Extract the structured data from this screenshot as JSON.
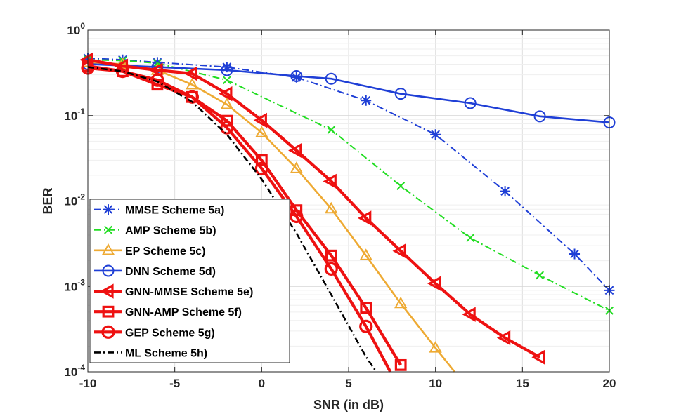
{
  "chart_data": {
    "type": "line",
    "title": "",
    "xlabel": "SNR (in dB)",
    "ylabel": "BER",
    "yscale": "log",
    "xlim": [
      -10,
      20
    ],
    "ylim": [
      0.0001,
      1
    ],
    "grid": true,
    "legend_position": "bottom-left",
    "x_ticks": [
      "-10",
      "-5",
      "0",
      "5",
      "10",
      "15",
      "20"
    ],
    "y_ticks": [
      {
        "base": "10",
        "exp": "0"
      },
      {
        "base": "10",
        "exp": "-1"
      },
      {
        "base": "10",
        "exp": "-2"
      },
      {
        "base": "10",
        "exp": "-3"
      },
      {
        "base": "10",
        "exp": "-4"
      }
    ],
    "series": [
      {
        "name": "MMSE Scheme 5a)",
        "color": "#1f3fd6",
        "dash": "dashdot",
        "width": "thin",
        "marker": "star",
        "x": [
          -10,
          -8,
          -6,
          -2,
          2,
          6,
          10,
          14,
          18,
          20
        ],
        "y": [
          0.47,
          0.45,
          0.42,
          0.37,
          0.28,
          0.15,
          0.06,
          0.013,
          0.0024,
          0.0009
        ]
      },
      {
        "name": "AMP Scheme 5b)",
        "color": "#22dd22",
        "dash": "dashdot",
        "width": "thin",
        "marker": "x",
        "x": [
          -10,
          -8,
          -6,
          -2,
          4,
          8,
          12,
          16,
          20
        ],
        "y": [
          0.45,
          0.44,
          0.41,
          0.26,
          0.068,
          0.015,
          0.0037,
          0.00135,
          0.00052
        ]
      },
      {
        "name": "EP Scheme 5c)",
        "color": "#eeaa33",
        "dash": "solid",
        "width": "medium",
        "marker": "triangle-up",
        "x": [
          -10,
          -8,
          -6,
          -4,
          -2,
          0,
          2,
          4,
          6,
          8,
          10,
          11.1
        ],
        "y": [
          0.42,
          0.4,
          0.34,
          0.23,
          0.135,
          0.063,
          0.024,
          0.0081,
          0.0023,
          0.00063,
          0.00019,
          0.0001
        ]
      },
      {
        "name": "DNN Scheme 5d)",
        "color": "#1f3fd6",
        "dash": "solid",
        "width": "medium",
        "marker": "circle",
        "x": [
          -10,
          -6,
          -2,
          2,
          4,
          8,
          12,
          16,
          20
        ],
        "y": [
          0.4,
          0.37,
          0.34,
          0.29,
          0.27,
          0.18,
          0.14,
          0.098,
          0.083
        ]
      },
      {
        "name": "GNN-MMSE Scheme 5e)",
        "color": "#ee1111",
        "dash": "solid",
        "width": "thick",
        "marker": "triangle-left",
        "x": [
          -10,
          -8,
          -6,
          -4,
          -2,
          0,
          2,
          4,
          6,
          8,
          10,
          12,
          14,
          16
        ],
        "y": [
          0.45,
          0.38,
          0.34,
          0.31,
          0.18,
          0.088,
          0.039,
          0.017,
          0.0063,
          0.0026,
          0.00108,
          0.00047,
          0.00025,
          0.000148
        ]
      },
      {
        "name": "GNN-AMP Scheme 5f)",
        "color": "#ee1111",
        "dash": "solid",
        "width": "thick",
        "marker": "square",
        "x": [
          -10,
          -8,
          -6,
          -4,
          -2,
          0,
          2,
          4,
          6,
          8
        ],
        "y": [
          0.38,
          0.33,
          0.23,
          0.165,
          0.087,
          0.03,
          0.0078,
          0.0023,
          0.00056,
          0.00012
        ]
      },
      {
        "name": "GEP Scheme 5g)",
        "color": "#ee1111",
        "dash": "solid",
        "width": "thick",
        "marker": "circle",
        "x": [
          -10,
          -8,
          -6,
          -4,
          -2,
          0,
          2,
          4,
          6,
          7.4
        ],
        "y": [
          0.36,
          0.33,
          0.26,
          0.165,
          0.072,
          0.024,
          0.0066,
          0.0016,
          0.00034,
          0.0001
        ]
      },
      {
        "name": "ML Scheme 5h)",
        "color": "#000000",
        "dash": "dashdot",
        "width": "medium",
        "marker": "none",
        "x": [
          -10,
          -8,
          -6,
          -4,
          -2,
          0,
          2,
          4,
          6,
          6.6
        ],
        "y": [
          0.37,
          0.33,
          0.25,
          0.145,
          0.06,
          0.018,
          0.0042,
          0.0008,
          0.00015,
          0.0001
        ]
      }
    ]
  }
}
